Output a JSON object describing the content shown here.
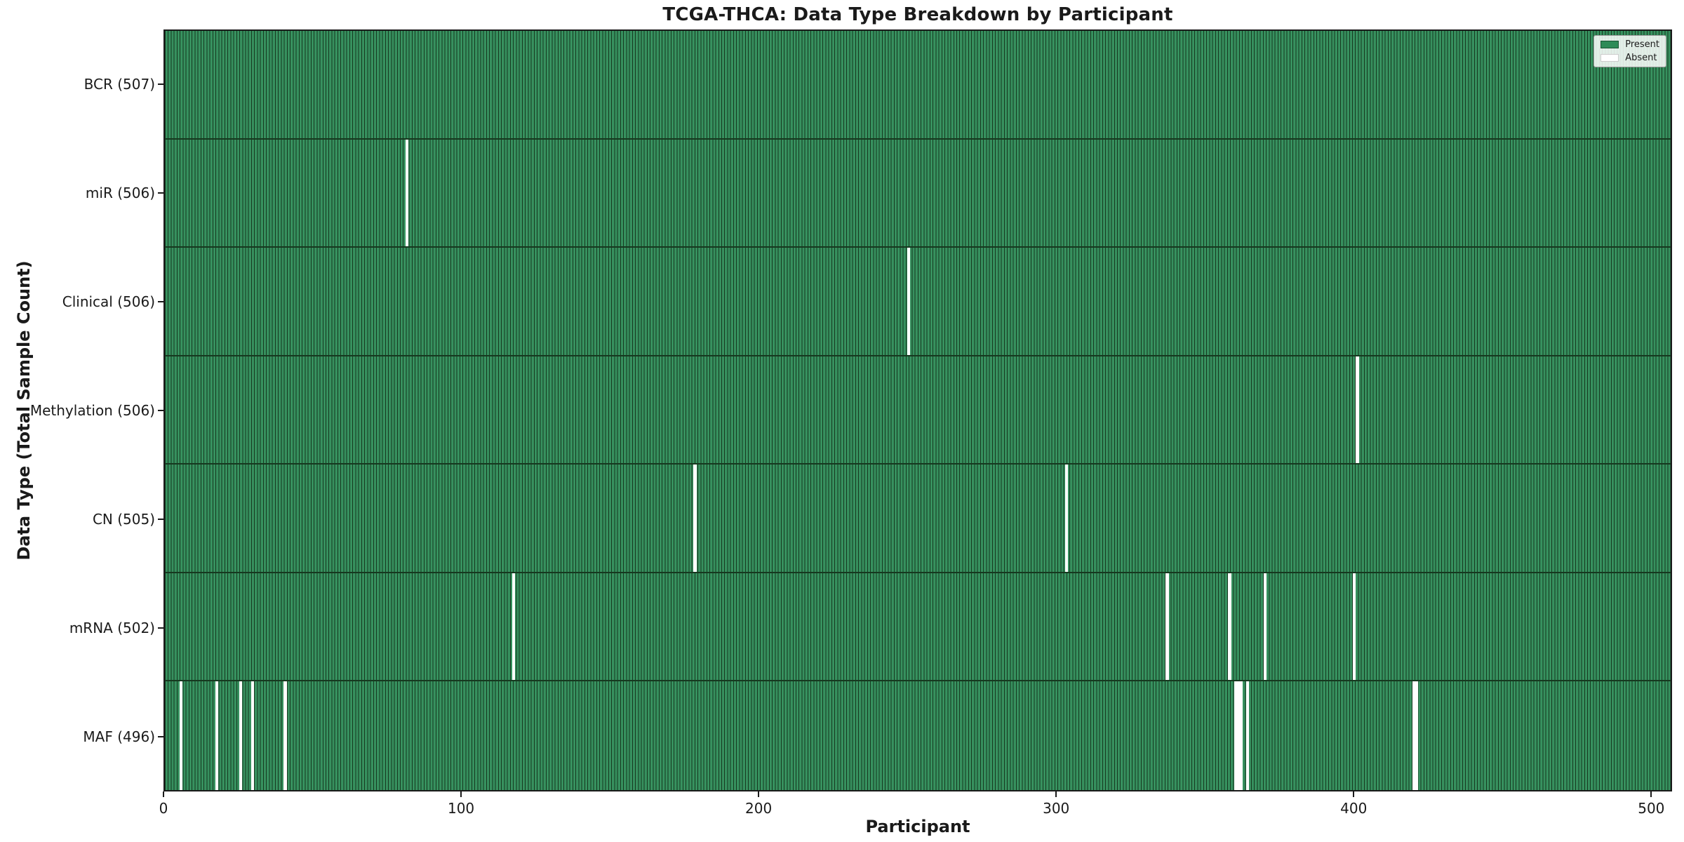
{
  "figure": {
    "title": "TCGA-THCA: Data Type Breakdown by Participant",
    "xlabel": "Participant",
    "ylabel": "Data Type (Total Sample Count)"
  },
  "legend": {
    "entries": [
      {
        "label": "Present",
        "color": "#2e8b57"
      },
      {
        "label": "Absent",
        "color": "#ffffff"
      }
    ]
  },
  "colors": {
    "bar_fill": "#37915f",
    "bar_edge": "#16381f",
    "absent": "#ffffff",
    "spine": "#1a1a1a"
  },
  "chart_data": {
    "type": "heatmap",
    "title": "TCGA-THCA: Data Type Breakdown by Participant",
    "xlabel": "Participant",
    "ylabel": "Data Type (Total Sample Count)",
    "x_ticks": [
      0,
      100,
      200,
      300,
      400,
      500
    ],
    "x_range": [
      0,
      507
    ],
    "n_participants": 507,
    "grid": false,
    "legend_position": "upper right",
    "legend_labels": [
      "Present",
      "Absent"
    ],
    "rows": [
      {
        "label": "BCR (507)",
        "data_type": "BCR",
        "present_count": 507,
        "absent_participants": []
      },
      {
        "label": "miR (506)",
        "data_type": "miR",
        "present_count": 506,
        "absent_participants": [
          81
        ]
      },
      {
        "label": "Clinical (506)",
        "data_type": "Clinical",
        "present_count": 506,
        "absent_participants": [
          250
        ]
      },
      {
        "label": "Methylation (506)",
        "data_type": "Methylation",
        "present_count": 506,
        "absent_participants": [
          401
        ]
      },
      {
        "label": "CN (505)",
        "data_type": "CN",
        "present_count": 505,
        "absent_participants": [
          178,
          303
        ]
      },
      {
        "label": "mRNA (502)",
        "data_type": "mRNA",
        "present_count": 502,
        "absent_participants": [
          117,
          337,
          358,
          370,
          400
        ]
      },
      {
        "label": "MAF (496)",
        "data_type": "MAF",
        "present_count": 496,
        "absent_participants": [
          5,
          17,
          25,
          29,
          40,
          360,
          361,
          362,
          364,
          420,
          421
        ]
      }
    ]
  }
}
